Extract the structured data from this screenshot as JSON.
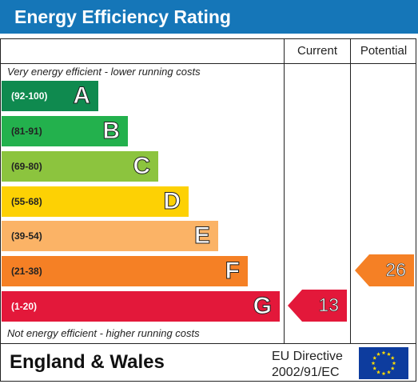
{
  "title": "Energy Efficiency Rating",
  "columns": {
    "current": "Current",
    "potential": "Potential"
  },
  "top_caption": "Very energy efficient - lower running costs",
  "bottom_caption": "Not energy efficient - higher running costs",
  "footer": {
    "region": "England & Wales",
    "directive_line1": "EU Directive",
    "directive_line2": "2002/91/EC"
  },
  "colors": {
    "title_bar": "#1576b8",
    "A": "#0f8a4f",
    "B": "#23b14d",
    "C": "#8cc43e",
    "D": "#fdd104",
    "E": "#fbb366",
    "F": "#f58025",
    "G": "#e3183a",
    "eu_flag": "#0d3c9e",
    "eu_stars": "#ffdd00"
  },
  "chart_data": {
    "type": "bar",
    "categories": [
      "A",
      "B",
      "C",
      "D",
      "E",
      "F",
      "G"
    ],
    "bands": [
      {
        "letter": "A",
        "range": "(92-100)"
      },
      {
        "letter": "B",
        "range": "(81-91)"
      },
      {
        "letter": "C",
        "range": "(69-80)"
      },
      {
        "letter": "D",
        "range": "(55-68)"
      },
      {
        "letter": "E",
        "range": "(39-54)"
      },
      {
        "letter": "F",
        "range": "(21-38)"
      },
      {
        "letter": "G",
        "range": "(1-20)"
      }
    ],
    "current": {
      "value": "13",
      "band": "G"
    },
    "potential": {
      "value": "26",
      "band": "F"
    }
  }
}
